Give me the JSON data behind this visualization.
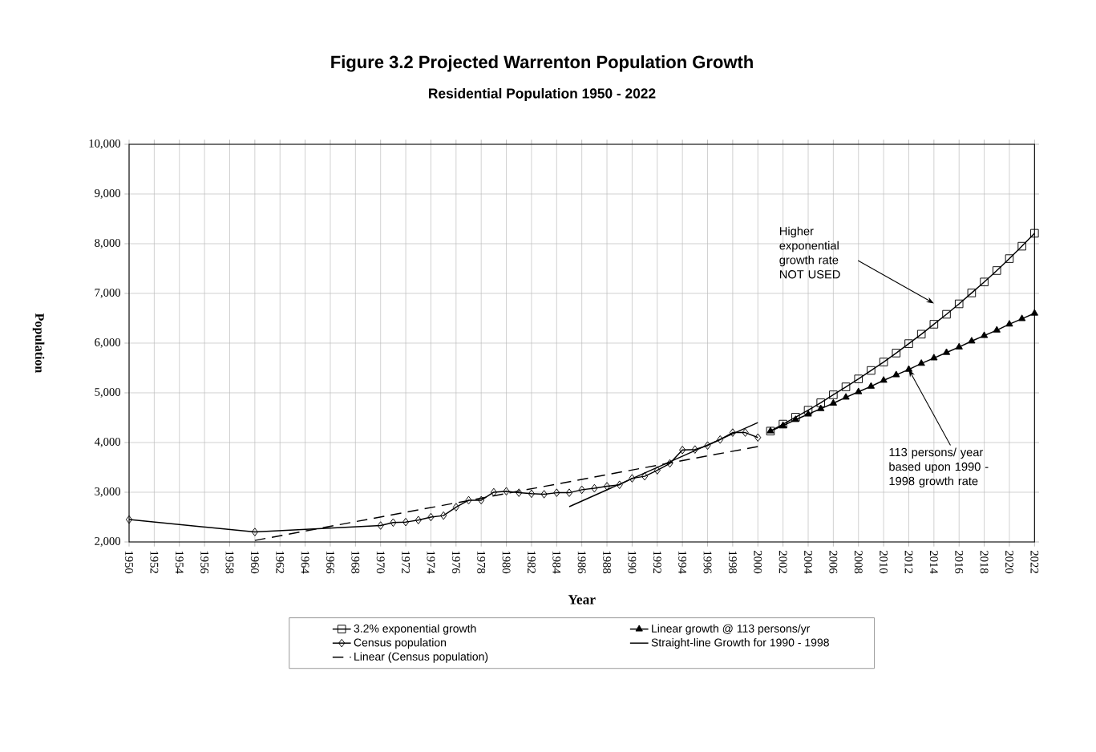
{
  "chart_data": {
    "type": "line",
    "title": "Figure 3.2  Projected Warrenton Population Growth",
    "subtitle": "Residential Population 1950 - 2022",
    "xlabel": "Year",
    "ylabel": "Population",
    "xlim": [
      1950,
      2022
    ],
    "xticks": [
      1950,
      1952,
      1954,
      1956,
      1958,
      1960,
      1962,
      1964,
      1966,
      1968,
      1970,
      1972,
      1974,
      1976,
      1978,
      1980,
      1982,
      1984,
      1986,
      1988,
      1990,
      1992,
      1994,
      1996,
      1998,
      2000,
      2002,
      2004,
      2006,
      2008,
      2010,
      2012,
      2014,
      2016,
      2018,
      2020,
      2022
    ],
    "ylim": [
      2000,
      10000
    ],
    "yticks": [
      {
        "value": 2000,
        "label": "2,000"
      },
      {
        "value": 3000,
        "label": "3,000"
      },
      {
        "value": 4000,
        "label": "4,000"
      },
      {
        "value": 5000,
        "label": "5,000"
      },
      {
        "value": 6000,
        "label": "6,000"
      },
      {
        "value": 7000,
        "label": "7,000"
      },
      {
        "value": 8000,
        "label": "8,000"
      },
      {
        "value": 9000,
        "label": "9,000"
      },
      {
        "value": 10000,
        "label": "10,000"
      }
    ],
    "grid": true,
    "legend": "bottom",
    "series": [
      {
        "name": "3.2% exponential growth",
        "color": "#000000",
        "marker": "square",
        "line_style": "solid",
        "x": [
          2001,
          2002,
          2003,
          2004,
          2005,
          2006,
          2007,
          2008,
          2009,
          2010,
          2011,
          2012,
          2013,
          2014,
          2015,
          2016,
          2017,
          2018,
          2019,
          2020,
          2021,
          2022
        ],
        "values": [
          4230,
          4370,
          4510,
          4650,
          4800,
          4960,
          5120,
          5280,
          5450,
          5620,
          5800,
          5990,
          6180,
          6380,
          6580,
          6790,
          7010,
          7230,
          7460,
          7700,
          7950,
          8210
        ]
      },
      {
        "name": "Linear growth @ 113 persons/yr",
        "color": "#000000",
        "marker": "triangle",
        "line_style": "solid",
        "x": [
          2001,
          2002,
          2003,
          2004,
          2005,
          2006,
          2007,
          2008,
          2009,
          2010,
          2011,
          2012,
          2013,
          2014,
          2015,
          2016,
          2017,
          2018,
          2019,
          2020,
          2021,
          2022
        ],
        "values": [
          4230,
          4340,
          4460,
          4570,
          4680,
          4790,
          4910,
          5020,
          5130,
          5250,
          5360,
          5470,
          5590,
          5700,
          5810,
          5920,
          6040,
          6150,
          6260,
          6380,
          6490,
          6600
        ]
      },
      {
        "name": "Census population",
        "color": "#000000",
        "marker": "diamond",
        "line_style": "solid",
        "x": [
          1950,
          1960,
          1970,
          1971,
          1972,
          1973,
          1974,
          1975,
          1976,
          1977,
          1978,
          1979,
          1980,
          1981,
          1982,
          1983,
          1984,
          1985,
          1986,
          1987,
          1988,
          1989,
          1990,
          1991,
          1992,
          1993,
          1994,
          1995,
          1996,
          1997,
          1998,
          1999,
          2000
        ],
        "values": [
          2450,
          2200,
          2330,
          2390,
          2400,
          2440,
          2500,
          2530,
          2700,
          2840,
          2840,
          3000,
          3020,
          2990,
          2970,
          2960,
          2990,
          2990,
          3050,
          3080,
          3120,
          3150,
          3280,
          3320,
          3440,
          3580,
          3850,
          3860,
          3940,
          4060,
          4200,
          4200,
          4100
        ]
      },
      {
        "name": "Straight-line Growth for 1990 - 1998",
        "color": "#000000",
        "marker": "none",
        "line_style": "solid",
        "x": [
          1985,
          2000
        ],
        "values": [
          2710,
          4400
        ]
      },
      {
        "name": "Linear (Census population)",
        "color": "#000000",
        "marker": "none",
        "line_style": "dashed",
        "x": [
          1960,
          2000
        ],
        "values": [
          2030,
          3920
        ]
      }
    ],
    "annotations": [
      "Higher exponential growth rate NOT USED",
      {
        "text": "113 persons/ year based upon 1990 - 1998 growth rate",
        "x": 2012,
        "y": 5470
      }
    ]
  }
}
